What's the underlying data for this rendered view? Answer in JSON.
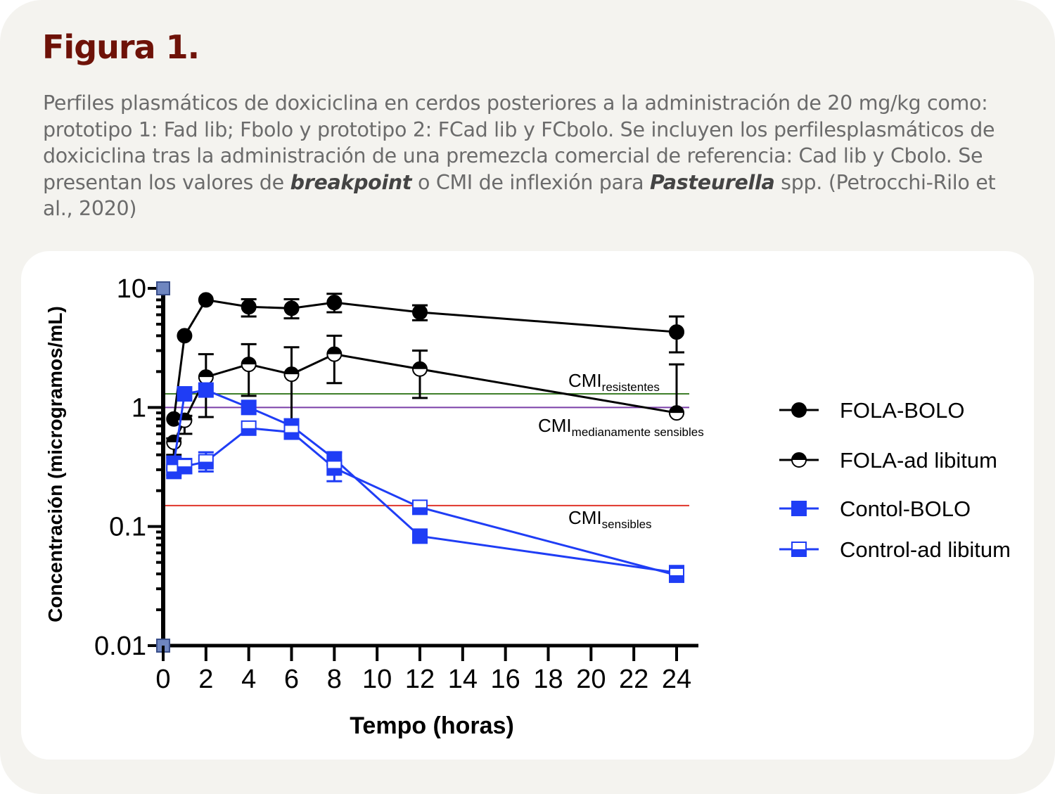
{
  "figure": {
    "title": "Figura 1.",
    "caption_parts": [
      "Perfiles plasmáticos de doxiciclina en cerdos posteriores a la administración de 20 mg/kg como: prototipo 1: Fad lib; Fbolo y prototipo 2: FCad lib y FCbolo. Se incluyen los perfilesplasmáticos de doxiciclina tras la administración de una premezcla comercial de referencia: Cad lib y Cbolo. Se presentan los valores de ",
      "breakpoint",
      " o CMI de inflexión para ",
      "Pasteurella",
      " spp. (Petrocchi-Rilo et al., 2020)"
    ]
  },
  "chart_data": {
    "type": "line",
    "xlabel": "Tempo (horas)",
    "ylabel": "Concentración (microgramos/mL)",
    "xlim": [
      0,
      24
    ],
    "ylim": [
      0.01,
      10
    ],
    "yscale": "log",
    "xticks": [
      "0",
      "2",
      "4",
      "6",
      "8",
      "10",
      "12",
      "14",
      "16",
      "18",
      "20",
      "22",
      "24"
    ],
    "yticks": [
      "10",
      "1",
      "0.1",
      "0.01"
    ],
    "legend_position": "right",
    "x": [
      0.5,
      1,
      2,
      4,
      6,
      8,
      12,
      24
    ],
    "series": [
      {
        "name": "FOLA-BOLO",
        "marker": "circle-filled",
        "color": "#000000",
        "values": [
          0.8,
          4.0,
          8.0,
          7.0,
          6.8,
          7.6,
          6.3,
          4.3
        ],
        "err_low": [
          0.8,
          4.0,
          8.0,
          5.8,
          5.6,
          6.3,
          5.4,
          2.9
        ],
        "err_high": [
          0.8,
          4.0,
          8.0,
          8.1,
          8.1,
          9.0,
          7.2,
          5.8
        ]
      },
      {
        "name": "FOLA-ad libitum",
        "marker": "circle-half",
        "color": "#000000",
        "values": [
          0.51,
          0.78,
          1.8,
          2.3,
          1.9,
          2.8,
          2.1,
          0.9
        ],
        "err_low": [
          0.4,
          0.6,
          0.83,
          1.25,
          0.65,
          1.6,
          1.2,
          0.9
        ],
        "err_high": [
          0.55,
          0.85,
          2.8,
          3.4,
          3.2,
          4.0,
          3.0,
          2.3
        ]
      },
      {
        "name": "Contol-BOLO",
        "marker": "square-filled",
        "color": "#1f3df5",
        "values": [
          0.34,
          1.3,
          1.4,
          1.0,
          0.7,
          0.37,
          0.083,
          0.041
        ],
        "err_low": [
          0.3,
          1.3,
          1.4,
          1.0,
          0.62,
          0.33,
          0.083,
          0.038
        ],
        "err_high": [
          0.38,
          1.3,
          1.4,
          1.0,
          0.78,
          0.42,
          0.083,
          0.044
        ]
      },
      {
        "name": "Control-ad libitum",
        "marker": "square-half",
        "color": "#1f3df5",
        "values": [
          0.29,
          0.32,
          0.35,
          0.67,
          0.62,
          0.31,
          0.145,
          0.039
        ],
        "err_low": [
          0.27,
          0.28,
          0.29,
          0.67,
          0.6,
          0.24,
          0.14,
          0.035
        ],
        "err_high": [
          0.31,
          0.37,
          0.42,
          0.67,
          0.64,
          0.36,
          0.15,
          0.043
        ]
      }
    ],
    "reference_lines": [
      {
        "label": "CMI",
        "sub": "resistentes",
        "value": 1.3,
        "color": "#3f7f2a"
      },
      {
        "label": "CMI",
        "sub": "medianamente sensibles",
        "value": 1.0,
        "color": "#7a3fa8"
      },
      {
        "label": "CMI",
        "sub": "sensibles",
        "value": 0.15,
        "color": "#e0342a"
      }
    ]
  }
}
